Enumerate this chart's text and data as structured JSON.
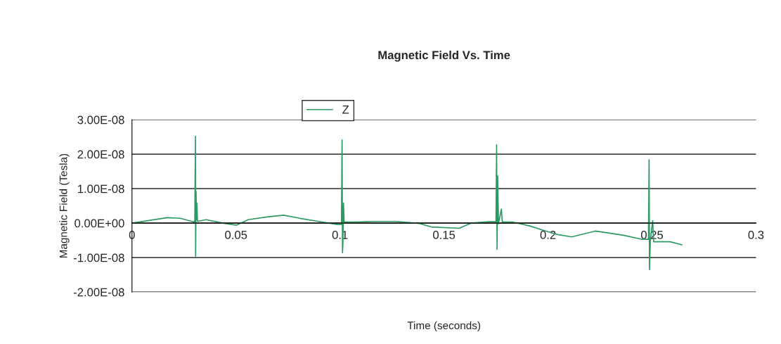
{
  "chart_data": {
    "type": "line",
    "title": "Magnetic Field Vs. Time",
    "xlabel": "Time (seconds)",
    "ylabel": "Magnetic Field (Tesla)",
    "xlim": [
      0,
      0.3
    ],
    "xticks": [
      0,
      0.05,
      0.1,
      0.15,
      0.2,
      0.25,
      0.3
    ],
    "ylim": [
      -2e-08,
      3e-08
    ],
    "yticks": [
      {
        "value": -2e-08,
        "label": "-2.00E-08"
      },
      {
        "value": -1e-08,
        "label": "-1.00E-08"
      },
      {
        "value": 0,
        "label": "0.00E+00"
      },
      {
        "value": 1e-08,
        "label": "1.00E-08"
      },
      {
        "value": 2e-08,
        "label": "2.00E-08"
      },
      {
        "value": 3e-08,
        "label": "3.00E-08"
      }
    ],
    "grid": "y",
    "legend": "top",
    "series": [
      {
        "name": "Z",
        "color": "#2e9a63",
        "x": [
          0,
          0.017,
          0.0232,
          0.0294,
          0.0302,
          0.0305,
          0.0306,
          0.0308,
          0.031,
          0.0312,
          0.0315,
          0.0356,
          0.0446,
          0.0503,
          0.0559,
          0.0649,
          0.0728,
          0.0807,
          0.0897,
          0.0987,
          0.1007,
          0.101,
          0.1012,
          0.1014,
          0.1017,
          0.102,
          0.1077,
          0.1156,
          0.1269,
          0.1382,
          0.1438,
          0.1573,
          0.163,
          0.172,
          0.175,
          0.1753,
          0.1755,
          0.1758,
          0.1762,
          0.1776,
          0.178,
          0.1832,
          0.1911,
          0.199,
          0.2046,
          0.2114,
          0.2227,
          0.2362,
          0.2452,
          0.2483,
          0.2486,
          0.2488,
          0.2492,
          0.2503,
          0.2508,
          0.2542,
          0.2587,
          0.2644
        ],
        "values": [
          0,
          1.6e-09,
          1.4e-09,
          4e-10,
          4e-10,
          2.52e-08,
          -9.6e-09,
          9.2e-09,
          1e-09,
          5.8e-09,
          5e-10,
          1e-09,
          -1e-10,
          -6e-10,
          1e-09,
          1.8e-09,
          2.3e-09,
          1.4e-09,
          5e-10,
          -4e-10,
          -4e-10,
          2.41e-08,
          -8.6e-09,
          -6e-09,
          5.8e-09,
          3e-10,
          3e-10,
          5e-10,
          5e-10,
          -1e-10,
          -1.1e-09,
          -1.5e-09,
          0,
          4e-10,
          4e-10,
          2.27e-08,
          -7.6e-09,
          1.37e-08,
          -2e-10,
          4.1e-09,
          3e-10,
          3e-10,
          -8e-10,
          -2.3e-09,
          -3.3e-09,
          -4e-09,
          -2.3e-09,
          -3.5e-09,
          -4.7e-09,
          -4.7e-09,
          1.84e-08,
          -1.35e-08,
          -5e-09,
          7e-10,
          -5.4e-09,
          -5.4e-09,
          -5.4e-09,
          -6.3e-09
        ]
      }
    ]
  }
}
